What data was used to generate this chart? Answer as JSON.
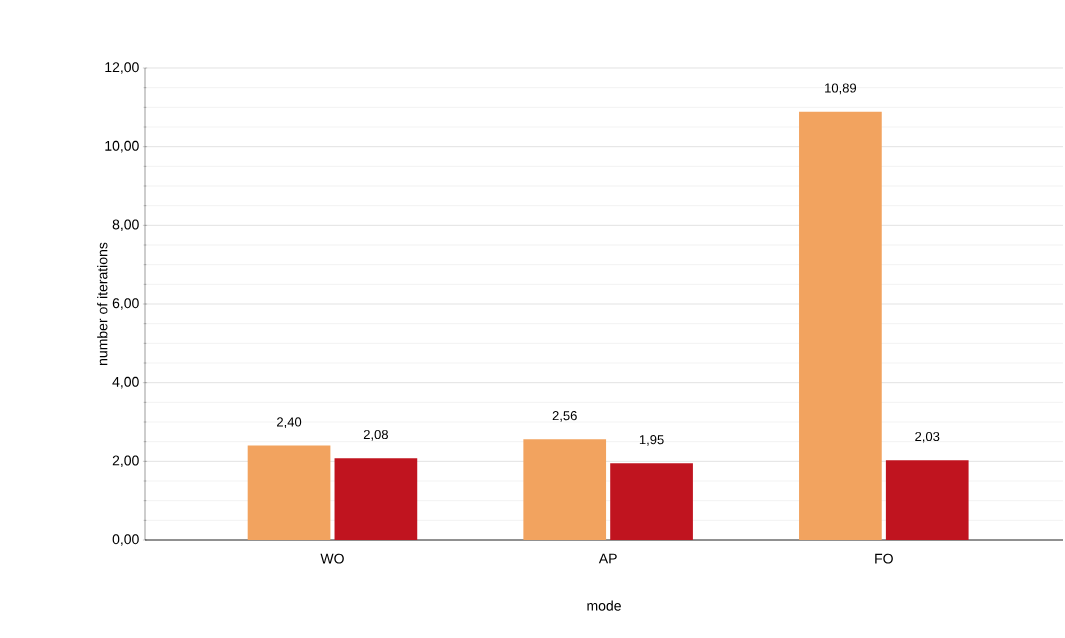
{
  "chart_data": {
    "type": "bar",
    "xlabel": "mode",
    "ylabel": "number of iterations",
    "categories": [
      "WO",
      "AP",
      "FO"
    ],
    "series": [
      {
        "color": "#f2a35f",
        "values": [
          2.4,
          2.56,
          10.89
        ],
        "value_labels": [
          "2,40",
          "2,56",
          "10,89"
        ]
      },
      {
        "color": "#c0141f",
        "values": [
          2.08,
          1.95,
          2.03
        ],
        "value_labels": [
          "2,08",
          "1,95",
          "2,03"
        ]
      }
    ],
    "ylim": [
      0,
      12
    ],
    "yticks": [
      {
        "value": 0,
        "label": "0,00"
      },
      {
        "value": 2,
        "label": "2,00"
      },
      {
        "value": 4,
        "label": "4,00"
      },
      {
        "value": 6,
        "label": "6,00"
      },
      {
        "value": 8,
        "label": "8,00"
      },
      {
        "value": 10,
        "label": "10,00"
      },
      {
        "value": 12,
        "label": "12,00"
      }
    ],
    "grid": "y"
  }
}
